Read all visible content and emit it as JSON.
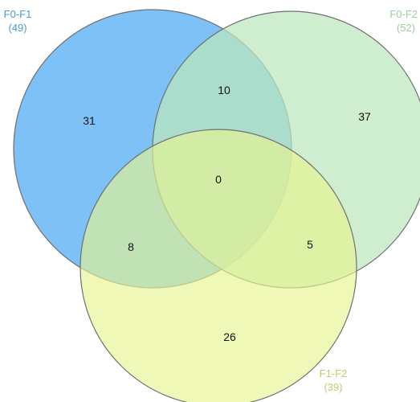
{
  "sets": [
    {
      "key": "a",
      "name": "F0-F1",
      "count": "(49)",
      "fill": "#58aff5",
      "label_color": "#4a9ad6"
    },
    {
      "key": "b",
      "name": "F0-F2",
      "count": "(52)",
      "fill": "#bce8bc",
      "label_color": "#9ccf9c"
    },
    {
      "key": "c",
      "name": "F1-F2",
      "count": "(39)",
      "fill": "#e6f590",
      "label_color": "#bfcf6a"
    }
  ],
  "regions": {
    "a_only": "31",
    "b_only": "37",
    "c_only": "26",
    "ab": "10",
    "ac": "8",
    "bc": "5",
    "abc": "0"
  },
  "colors": {
    "circle_stroke": "#6f6f6f",
    "region_text": "#111111"
  }
}
